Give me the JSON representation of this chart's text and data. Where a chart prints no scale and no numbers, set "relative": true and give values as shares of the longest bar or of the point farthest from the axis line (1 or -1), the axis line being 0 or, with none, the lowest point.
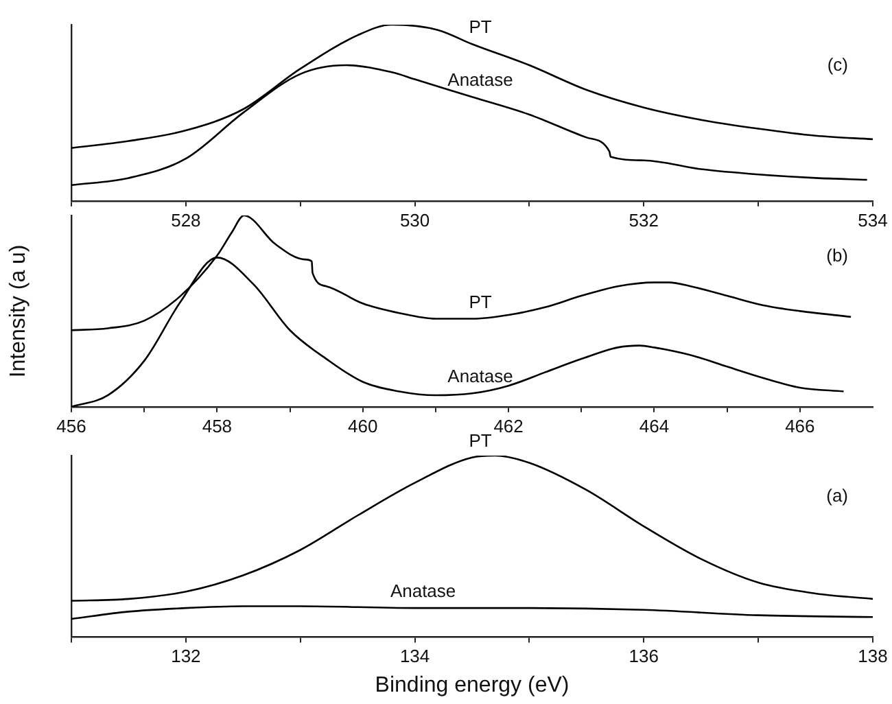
{
  "chart_data": [
    {
      "type": "line",
      "relative": true,
      "tick_labels": "x",
      "xlim": [
        527,
        534
      ],
      "xticks": [
        {
          "value": 527,
          "label": null
        },
        528,
        {
          "value": 529,
          "label": null
        },
        530,
        {
          "value": 531,
          "label": null
        },
        532,
        {
          "value": 533,
          "label": null
        },
        534
      ],
      "series": [
        {
          "name": "PT",
          "color": "#000000",
          "x": [
            527,
            527.5,
            528,
            528.5,
            529,
            529.5,
            529.8,
            530.2,
            530.5,
            531,
            531.5,
            532,
            532.5,
            533,
            533.5,
            534
          ],
          "values": [
            0.3,
            0.34,
            0.4,
            0.52,
            0.75,
            0.94,
            1,
            0.97,
            0.89,
            0.77,
            0.63,
            0.53,
            0.46,
            0.41,
            0.37,
            0.35
          ]
        },
        {
          "name": "Anatase",
          "color": "#000000",
          "x": [
            527,
            527.5,
            528,
            528.5,
            529,
            529.4,
            529.8,
            530,
            530.5,
            531,
            531.5,
            531.7,
            531.71,
            532,
            532.5,
            533,
            533.5,
            533.95
          ],
          "values": [
            0.09,
            0.13,
            0.24,
            0.5,
            0.72,
            0.77,
            0.73,
            0.69,
            0.59,
            0.49,
            0.36,
            0.28,
            0.25,
            0.23,
            0.18,
            0.15,
            0.13,
            0.12
          ]
        }
      ],
      "annotations": [
        "(c)"
      ]
    },
    {
      "type": "line",
      "relative": true,
      "tick_labels": "x",
      "ylabel": "Intensity (a u)",
      "xlim": [
        456,
        467
      ],
      "xticks": [
        456,
        {
          "value": 457,
          "label": null
        },
        458,
        {
          "value": 459,
          "label": null
        },
        460,
        {
          "value": 461,
          "label": null
        },
        462,
        {
          "value": 463,
          "label": null
        },
        464,
        {
          "value": 465,
          "label": null
        },
        466
      ],
      "series": [
        {
          "name": "PT",
          "color": "#000000",
          "x": [
            456,
            456.5,
            457,
            457.5,
            458,
            458.2,
            458.37,
            458.8,
            459.2,
            459.3,
            459.31,
            459.5,
            460,
            460.5,
            461,
            461.5,
            462,
            462.5,
            463,
            463.5,
            464,
            464.2,
            464.5,
            465,
            465.5,
            466,
            466.7
          ],
          "values": [
            0.4,
            0.41,
            0.45,
            0.58,
            0.79,
            0.91,
            1,
            0.85,
            0.77,
            0.76,
            0.7,
            0.63,
            0.54,
            0.49,
            0.46,
            0.46,
            0.48,
            0.52,
            0.58,
            0.63,
            0.65,
            0.65,
            0.63,
            0.58,
            0.53,
            0.5,
            0.47
          ]
        },
        {
          "name": "Anatase",
          "color": "#000000",
          "x": [
            456,
            456.5,
            457,
            457.5,
            458,
            458.5,
            459,
            459.5,
            460,
            460.5,
            461,
            461.5,
            462,
            462.5,
            463,
            463.5,
            463.8,
            464,
            464.5,
            465,
            465.5,
            466,
            466.6
          ],
          "values": [
            0,
            0.06,
            0.24,
            0.55,
            0.78,
            0.64,
            0.4,
            0.25,
            0.13,
            0.08,
            0.06,
            0.07,
            0.11,
            0.18,
            0.25,
            0.31,
            0.32,
            0.31,
            0.27,
            0.21,
            0.15,
            0.1,
            0.08
          ]
        }
      ],
      "annotations": [
        "(b)"
      ]
    },
    {
      "type": "line",
      "relative": true,
      "tick_labels": "x",
      "xlabel": "Binding energy (eV)",
      "xlim": [
        131,
        138
      ],
      "xticks": [
        {
          "value": 131,
          "label": null
        },
        132,
        {
          "value": 133,
          "label": null
        },
        134,
        {
          "value": 135,
          "label": null
        },
        136,
        {
          "value": 137,
          "label": null
        },
        138
      ],
      "series": [
        {
          "name": "PT",
          "color": "#000000",
          "x": [
            131,
            131.5,
            132,
            132.5,
            133,
            133.5,
            134,
            134.5,
            134.7,
            135,
            135.5,
            136,
            136.5,
            137,
            137.5,
            138
          ],
          "values": [
            0.2,
            0.21,
            0.25,
            0.34,
            0.48,
            0.67,
            0.85,
            0.99,
            1,
            0.96,
            0.81,
            0.61,
            0.43,
            0.3,
            0.24,
            0.21
          ]
        },
        {
          "name": "Anatase",
          "color": "#000000",
          "x": [
            131,
            131.5,
            132,
            132.5,
            133,
            134,
            135,
            136,
            137,
            138
          ],
          "values": [
            0.1,
            0.14,
            0.16,
            0.17,
            0.17,
            0.16,
            0.16,
            0.15,
            0.12,
            0.11
          ]
        }
      ],
      "annotations": [
        "(a)"
      ]
    }
  ]
}
